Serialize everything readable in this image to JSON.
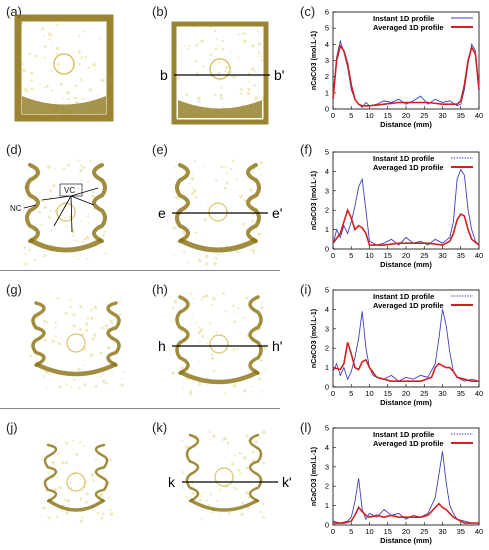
{
  "colors": {
    "crust": "#8a7010",
    "crust_light": "#d9c46a",
    "bg_speck": "#e9dfa0",
    "instant": "#4040c0",
    "averaged": "#d02020",
    "separator": "#8c8c8c"
  },
  "rows": [
    {
      "labels": [
        "(a)",
        "(b)",
        "(c)"
      ],
      "cut": [
        "b",
        "b'"
      ],
      "sample_labels": []
    },
    {
      "labels": [
        "(d)",
        "(e)",
        "(f)"
      ],
      "cut": [
        "e",
        "e'"
      ],
      "sample_labels": [
        "NC",
        "VC"
      ]
    },
    {
      "labels": [
        "(g)",
        "(h)",
        "(i)"
      ],
      "cut": [
        "h",
        "h'"
      ],
      "sample_labels": []
    },
    {
      "labels": [
        "(j)",
        "(k)",
        "(l)"
      ],
      "cut": [
        "k",
        "k'"
      ],
      "sample_labels": []
    }
  ],
  "chart_data": [
    {
      "type": "line",
      "panel": "(c)",
      "xlabel": "Distance (mm)",
      "ylabel": "nCaCO3 (mol.L-1)",
      "xlim": [
        0,
        40
      ],
      "ylim": [
        0,
        6
      ],
      "xticks": [
        0,
        5,
        10,
        15,
        20,
        25,
        30,
        35,
        40
      ],
      "yticks": [
        0,
        1,
        2,
        3,
        4,
        5,
        6
      ],
      "legend": "top-right",
      "series": [
        {
          "name": "Instant 1D profile",
          "style": "solid",
          "x": [
            0,
            1,
            2,
            3,
            4,
            5,
            6,
            7,
            8,
            9,
            10,
            12,
            14,
            16,
            18,
            20,
            22,
            24,
            26,
            28,
            30,
            32,
            34,
            35,
            36,
            37,
            38,
            39,
            40
          ],
          "y": [
            0.5,
            3.2,
            4.2,
            3.5,
            2.6,
            1.2,
            0.6,
            0.3,
            0.1,
            0.4,
            0.2,
            0.3,
            0.5,
            0.4,
            0.6,
            0.3,
            0.5,
            0.8,
            0.3,
            0.6,
            0.4,
            0.5,
            0.2,
            0.3,
            1.2,
            2.8,
            4.0,
            3.6,
            1.0
          ]
        },
        {
          "name": "Averaged 1D profile",
          "style": "solid",
          "x": [
            0,
            1,
            2,
            3,
            4,
            5,
            6,
            7,
            8,
            10,
            14,
            18,
            22,
            26,
            30,
            34,
            35,
            36,
            37,
            38,
            39,
            40
          ],
          "y": [
            0.6,
            3.0,
            3.9,
            3.6,
            2.8,
            1.5,
            0.6,
            0.3,
            0.2,
            0.2,
            0.3,
            0.4,
            0.4,
            0.4,
            0.3,
            0.3,
            0.5,
            1.5,
            3.0,
            3.8,
            3.4,
            1.2
          ]
        }
      ]
    },
    {
      "type": "line",
      "panel": "(f)",
      "xlabel": "Distance (mm)",
      "ylabel": "nCaCO3 (mol.L-1)",
      "xlim": [
        0,
        40
      ],
      "ylim": [
        0,
        5
      ],
      "xticks": [
        0,
        5,
        10,
        15,
        20,
        25,
        30,
        35,
        40
      ],
      "yticks": [
        0,
        1,
        2,
        3,
        4,
        5
      ],
      "legend": "top-right",
      "series": [
        {
          "name": "Instant 1D profile",
          "style": "dotted",
          "x": [
            0,
            1,
            2,
            3,
            4,
            5,
            6,
            7,
            8,
            9,
            10,
            12,
            14,
            16,
            18,
            20,
            22,
            24,
            26,
            28,
            30,
            32,
            33,
            34,
            35,
            36,
            37,
            38,
            39,
            40
          ],
          "y": [
            0.2,
            1.0,
            0.6,
            1.2,
            0.8,
            1.4,
            2.2,
            3.2,
            3.6,
            2.0,
            0.4,
            0.2,
            0.3,
            0.5,
            0.2,
            0.6,
            0.3,
            0.4,
            0.2,
            0.5,
            0.3,
            0.6,
            1.4,
            3.6,
            4.1,
            3.8,
            2.0,
            1.0,
            0.4,
            0.2
          ]
        },
        {
          "name": "Averaged 1D profile",
          "style": "solid",
          "x": [
            0,
            2,
            3,
            4,
            5,
            6,
            7,
            8,
            9,
            10,
            14,
            18,
            22,
            26,
            30,
            32,
            33,
            34,
            35,
            36,
            37,
            38,
            40
          ],
          "y": [
            0.3,
            0.8,
            1.4,
            2.0,
            1.6,
            1.0,
            1.2,
            1.1,
            0.8,
            0.2,
            0.2,
            0.3,
            0.3,
            0.3,
            0.2,
            0.4,
            0.8,
            1.5,
            1.8,
            1.7,
            1.0,
            0.5,
            0.2
          ]
        }
      ]
    },
    {
      "type": "line",
      "panel": "(i)",
      "xlabel": "Distance (mm)",
      "ylabel": "nCaCO3 (mol.L-1)",
      "xlim": [
        0,
        40
      ],
      "ylim": [
        0,
        5
      ],
      "xticks": [
        0,
        5,
        10,
        15,
        20,
        25,
        30,
        35,
        40
      ],
      "yticks": [
        0,
        1,
        2,
        3,
        4,
        5
      ],
      "legend": "top-right",
      "series": [
        {
          "name": "Instant 1D profile",
          "style": "dotted",
          "x": [
            0,
            1,
            2,
            3,
            4,
            5,
            6,
            7,
            8,
            9,
            10,
            11,
            12,
            14,
            16,
            18,
            20,
            22,
            24,
            26,
            28,
            29,
            30,
            31,
            32,
            33,
            34,
            36,
            38,
            40
          ],
          "y": [
            0.8,
            1.2,
            0.6,
            1.0,
            0.4,
            0.8,
            1.5,
            2.5,
            3.9,
            2.0,
            1.0,
            0.6,
            0.5,
            0.4,
            0.6,
            0.3,
            0.5,
            0.4,
            0.6,
            0.5,
            1.2,
            2.5,
            4.0,
            3.2,
            1.8,
            0.8,
            0.5,
            0.3,
            0.4,
            0.3
          ]
        },
        {
          "name": "Averaged 1D profile",
          "style": "solid",
          "x": [
            0,
            2,
            3,
            4,
            5,
            6,
            7,
            8,
            9,
            10,
            12,
            16,
            20,
            24,
            27,
            28,
            29,
            30,
            31,
            32,
            33,
            34,
            36,
            38,
            40
          ],
          "y": [
            1.0,
            0.9,
            1.2,
            2.3,
            1.7,
            1.0,
            0.9,
            1.3,
            1.4,
            1.0,
            0.5,
            0.3,
            0.3,
            0.3,
            0.5,
            1.0,
            1.2,
            1.1,
            1.0,
            1.0,
            0.8,
            0.5,
            0.4,
            0.3,
            0.3
          ]
        }
      ]
    },
    {
      "type": "line",
      "panel": "(l)",
      "xlabel": "Distance (mm)",
      "ylabel": "nCaCO3 (mol.L-1)",
      "xlim": [
        0,
        40
      ],
      "ylim": [
        0,
        5
      ],
      "xticks": [
        0,
        5,
        10,
        15,
        20,
        25,
        30,
        35,
        40
      ],
      "yticks": [
        0,
        1,
        2,
        3,
        4,
        5
      ],
      "legend": "top-right",
      "series": [
        {
          "name": "Instant 1D profile",
          "style": "dotted",
          "x": [
            0,
            2,
            4,
            5,
            6,
            7,
            8,
            9,
            10,
            12,
            14,
            16,
            18,
            20,
            22,
            24,
            26,
            28,
            29,
            30,
            31,
            32,
            33,
            34,
            36,
            38,
            40
          ],
          "y": [
            0.2,
            0.1,
            0.2,
            0.4,
            1.2,
            2.4,
            0.8,
            0.3,
            0.6,
            0.4,
            0.8,
            0.5,
            0.6,
            0.3,
            0.5,
            0.4,
            0.6,
            1.4,
            2.6,
            3.8,
            2.2,
            1.0,
            0.6,
            0.3,
            0.2,
            0.1,
            0.1
          ]
        },
        {
          "name": "Averaged 1D profile",
          "style": "solid",
          "x": [
            0,
            3,
            5,
            6,
            7,
            8,
            9,
            10,
            12,
            14,
            16,
            18,
            20,
            22,
            24,
            26,
            27,
            28,
            29,
            30,
            31,
            32,
            33,
            34,
            36,
            40
          ],
          "y": [
            0.1,
            0.1,
            0.2,
            0.5,
            0.9,
            0.7,
            0.5,
            0.4,
            0.5,
            0.4,
            0.5,
            0.4,
            0.4,
            0.4,
            0.4,
            0.5,
            0.7,
            0.9,
            1.1,
            0.9,
            0.8,
            0.6,
            0.4,
            0.3,
            0.1,
            0.1
          ]
        }
      ]
    }
  ]
}
